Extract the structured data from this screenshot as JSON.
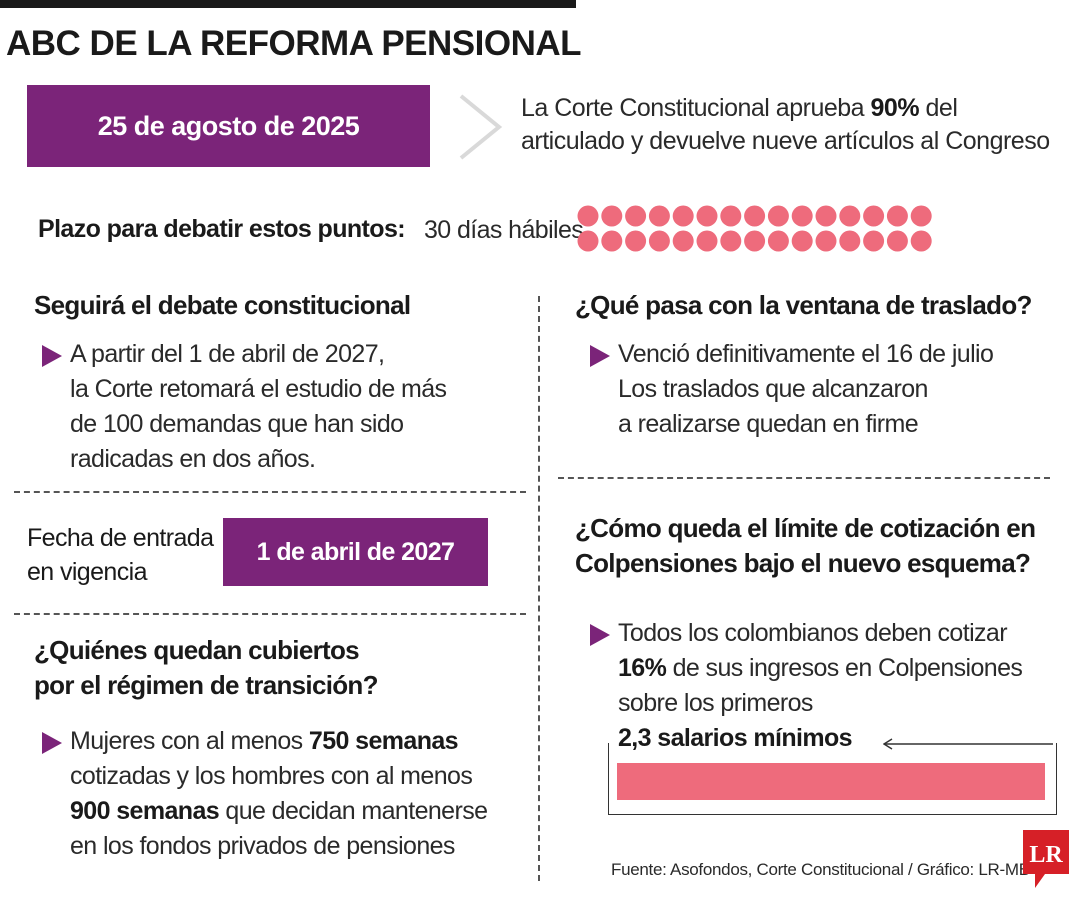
{
  "title": "ABC DE LA REFORMA PENSIONAL",
  "approval": {
    "date": "25 de agosto de 2025",
    "text_before": "La Corte Constitucional aprueba ",
    "highlight": "90%",
    "text_after": " del",
    "line2": "articulado y devuelve nueve artículos al Congreso"
  },
  "plazo": {
    "label": "Plazo para debatir estos puntos:",
    "value": "30 días hábiles",
    "days": 30,
    "dot_color": "#ee6b7c"
  },
  "debate": {
    "heading": "Seguirá el debate constitucional",
    "lines": [
      "A partir del 1 de abril de 2027,",
      "la Corte retomará el estudio de más",
      "de 100 demandas que han sido",
      "radicadas en dos años."
    ]
  },
  "vigencia": {
    "label_line1": "Fecha de entrada",
    "label_line2": "en vigencia",
    "date": "1 de abril de 2027"
  },
  "transicion": {
    "heading_line1": "¿Quiénes quedan cubiertos",
    "heading_line2": "por el régimen de transición?",
    "l1_pre": "Mujeres con al menos ",
    "l1_bold": "750 semanas",
    "l2": "cotizadas y los hombres con al menos",
    "l3_bold": "900 semanas",
    "l3_post": " que decidan mantenerse",
    "l4": "en los fondos privados de pensiones"
  },
  "traslado": {
    "heading": "¿Qué pasa con la ventana de traslado?",
    "lines": [
      "Venció definitivamente el 16 de julio",
      "Los traslados que alcanzaron",
      "a realizarse quedan en firme"
    ]
  },
  "limite": {
    "heading_line1": "¿Cómo queda el límite de cotización en",
    "heading_line2": "Colpensiones bajo el nuevo esquema?",
    "l1": "Todos los colombianos deben cotizar",
    "l2_bold": "16%",
    "l2_post": " de sus ingresos en Colpensiones",
    "l3": "sobre los primeros",
    "l4_bold": "2,3 salarios mínimos"
  },
  "source": "Fuente: Asofondos, Corte Constitucional / Gráfico: LR-MB",
  "logo": "LR",
  "colors": {
    "purple": "#7b2479",
    "pink": "#ee6b7c",
    "logo_red": "#d62027"
  }
}
